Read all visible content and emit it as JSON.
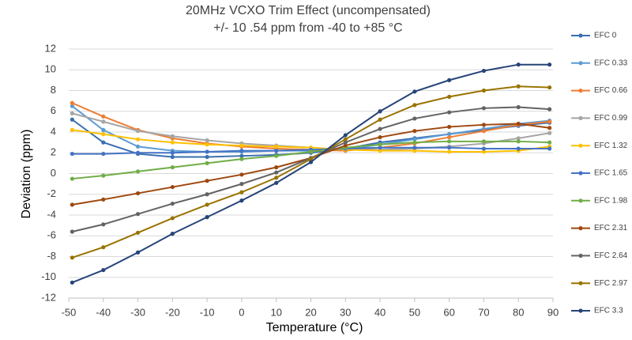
{
  "chart_data": {
    "type": "line",
    "title": "20MHz VCXO Trim Effect (uncompensated)",
    "subtitle": "+/- 10 .54 ppm from -40 to +85 °C",
    "x_label": "Temperature (°C)",
    "y_label": "Deviation (ppm)",
    "x": [
      -49,
      -40,
      -30,
      -20,
      -10,
      0,
      10,
      20,
      30,
      40,
      50,
      60,
      70,
      80,
      89
    ],
    "xlim": [
      -50,
      90
    ],
    "xticks": [
      -50,
      -40,
      -30,
      -20,
      -10,
      0,
      10,
      20,
      30,
      40,
      50,
      60,
      70,
      80,
      90
    ],
    "ylim": [
      -12,
      12
    ],
    "yticks": [
      -12,
      -10,
      -8,
      -6,
      -4,
      -2,
      0,
      2,
      4,
      6,
      8,
      10,
      12
    ],
    "grid": true,
    "legend": "right",
    "series": [
      {
        "name": "EFC 0",
        "color": "#3a6fb0",
        "values": [
          5.2,
          3.0,
          1.9,
          1.6,
          1.6,
          1.7,
          1.8,
          2.0,
          2.4,
          3.0,
          3.4,
          3.8,
          4.2,
          4.6,
          4.9
        ]
      },
      {
        "name": "EFC 0.33",
        "color": "#5b9bd5",
        "values": [
          6.5,
          4.2,
          2.6,
          2.2,
          2.1,
          2.1,
          2.2,
          2.2,
          2.3,
          2.8,
          3.3,
          3.8,
          4.3,
          4.8,
          5.1
        ]
      },
      {
        "name": "EFC 0.66",
        "color": "#ed7d31",
        "values": [
          6.8,
          5.5,
          4.2,
          3.4,
          2.9,
          2.6,
          2.4,
          2.3,
          2.2,
          2.5,
          2.9,
          3.5,
          4.1,
          4.7,
          5.0
        ]
      },
      {
        "name": "EFC 0.99",
        "color": "#a5a5a5",
        "values": [
          5.8,
          5.0,
          4.1,
          3.6,
          3.2,
          2.9,
          2.7,
          2.5,
          2.3,
          2.3,
          2.4,
          2.6,
          2.9,
          3.4,
          3.9
        ]
      },
      {
        "name": "EFC 1.32",
        "color": "#ffc000",
        "values": [
          4.2,
          3.8,
          3.3,
          3.0,
          2.8,
          2.7,
          2.6,
          2.5,
          2.3,
          2.2,
          2.2,
          2.1,
          2.1,
          2.2,
          2.6
        ]
      },
      {
        "name": "EFC 1.65",
        "color": "#4472c4",
        "values": [
          1.9,
          1.9,
          2.0,
          2.0,
          2.1,
          2.2,
          2.2,
          2.3,
          2.4,
          2.5,
          2.5,
          2.5,
          2.4,
          2.4,
          2.4
        ]
      },
      {
        "name": "EFC 1.98",
        "color": "#70ad47",
        "values": [
          -0.5,
          -0.2,
          0.2,
          0.6,
          1.0,
          1.4,
          1.7,
          2.1,
          2.5,
          2.8,
          3.0,
          3.1,
          3.1,
          3.1,
          3.0
        ]
      },
      {
        "name": "EFC 2.31",
        "color": "#9e480e",
        "values": [
          -3.0,
          -2.5,
          -1.9,
          -1.3,
          -0.7,
          -0.1,
          0.6,
          1.5,
          2.7,
          3.5,
          4.1,
          4.5,
          4.7,
          4.8,
          4.4
        ]
      },
      {
        "name": "EFC 2.64",
        "color": "#636363",
        "values": [
          -5.6,
          -4.9,
          -3.9,
          -2.9,
          -2.0,
          -1.0,
          0.1,
          1.5,
          3.0,
          4.3,
          5.3,
          5.9,
          6.3,
          6.4,
          6.2
        ]
      },
      {
        "name": "EFC 2.97",
        "color": "#997300",
        "values": [
          -8.1,
          -7.1,
          -5.7,
          -4.3,
          -3.0,
          -1.8,
          -0.4,
          1.4,
          3.3,
          5.2,
          6.6,
          7.4,
          8.0,
          8.4,
          8.3
        ]
      },
      {
        "name": "EFC 3.3",
        "color": "#264478",
        "values": [
          -10.5,
          -9.3,
          -7.6,
          -5.8,
          -4.2,
          -2.6,
          -0.9,
          1.1,
          3.7,
          6.0,
          7.9,
          9.0,
          9.9,
          10.5,
          10.5
        ]
      }
    ]
  }
}
